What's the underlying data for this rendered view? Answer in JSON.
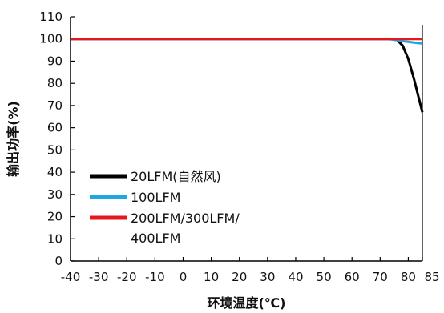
{
  "chart_data": {
    "type": "line",
    "xlabel": "环境温度(℃)",
    "ylabel": "输出功率(%)",
    "xlim": [
      -40,
      85
    ],
    "ylim": [
      0,
      110
    ],
    "x_ticks": [
      -40,
      -30,
      -20,
      -10,
      0,
      10,
      20,
      30,
      40,
      50,
      60,
      70,
      80,
      85
    ],
    "y_ticks": [
      0,
      10,
      20,
      30,
      40,
      50,
      60,
      70,
      80,
      90,
      100,
      110
    ],
    "grid": false,
    "legend_position": "bottom-left",
    "series": [
      {
        "name": "20LFM(自然风)",
        "color": "#000000",
        "x": [
          -40,
          60,
          70,
          72,
          74,
          76,
          78,
          80,
          82,
          84,
          85
        ],
        "y": [
          100,
          100,
          100,
          100,
          100,
          99.5,
          97,
          91,
          82,
          72,
          67
        ]
      },
      {
        "name": "100LFM",
        "color": "#1ea7e1",
        "x": [
          -40,
          70,
          72,
          74,
          76,
          78,
          80,
          82,
          84,
          85
        ],
        "y": [
          100,
          100,
          100,
          99.8,
          99.5,
          99,
          98.7,
          98.4,
          98.1,
          98
        ]
      },
      {
        "name": "200LFM/300LFM/\n400LFM",
        "color": "#e3171d",
        "x": [
          -40,
          85
        ],
        "y": [
          100,
          100
        ]
      }
    ],
    "legend_lines": [
      [
        "20LFM(自然风)"
      ],
      [
        "100LFM"
      ],
      [
        "200LFM/300LFM/",
        "400LFM"
      ]
    ]
  }
}
